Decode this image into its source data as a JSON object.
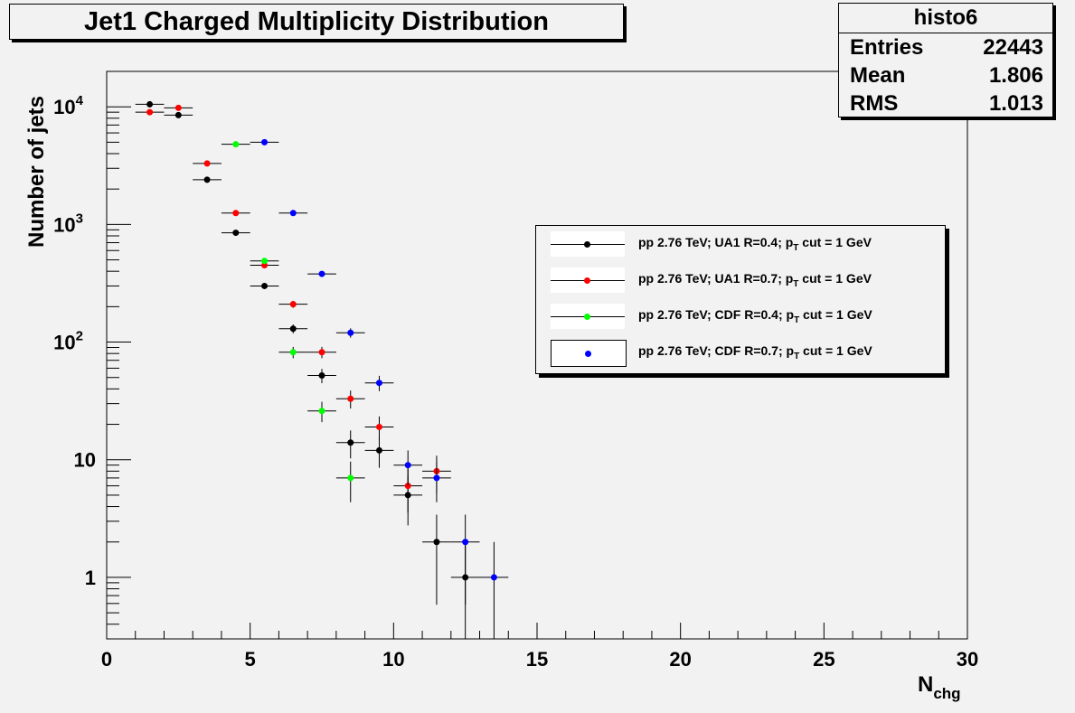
{
  "title": "Jet1 Charged Multiplicity Distribution",
  "stats": {
    "name": "histo6",
    "rows": [
      {
        "label": "Entries",
        "value": "22443"
      },
      {
        "label": "Mean",
        "value": "1.806"
      },
      {
        "label": "RMS",
        "value": "1.013"
      }
    ]
  },
  "legend": [
    {
      "pre": "pp 2.76 TeV; UA1 R=0.4; p",
      "sub": "T",
      "post": " cut = 1 GeV",
      "color": "#000000",
      "style": "line"
    },
    {
      "pre": "pp 2.76 TeV; UA1 R=0.7; p",
      "sub": "T",
      "post": " cut = 1 GeV",
      "color": "#ff0000",
      "style": "line"
    },
    {
      "pre": "pp 2.76 TeV; CDF R=0.4; p",
      "sub": "T",
      "post": " cut = 1 GeV",
      "color": "#00ff00",
      "style": "line"
    },
    {
      "pre": "pp 2.76 TeV; CDF R=0.7; p",
      "sub": "T",
      "post": " cut = 1 GeV",
      "color": "#0000ff",
      "style": "box"
    }
  ],
  "chart_data": {
    "type": "scatter",
    "title": "Jet1 Charged Multiplicity Distribution",
    "xlabel": "N",
    "xlabel_sub": "chg",
    "ylabel": "Number of jets",
    "xlim": [
      0,
      30
    ],
    "ylim": [
      0.3,
      20000
    ],
    "yscale": "log",
    "grid": false,
    "legend_position": "right",
    "x_ticks": [
      "0",
      "5",
      "10",
      "15",
      "20",
      "25",
      "30"
    ],
    "y_ticks": [
      {
        "value": 1,
        "base": "1",
        "exp": ""
      },
      {
        "value": 10,
        "base": "10",
        "exp": ""
      },
      {
        "value": 100,
        "base": "10",
        "exp": "2"
      },
      {
        "value": 1000,
        "base": "10",
        "exp": "3"
      },
      {
        "value": 10000,
        "base": "10",
        "exp": "4"
      }
    ],
    "series": [
      {
        "name": "pp 2.76 TeV; UA1 R=0.4; pT cut = 1 GeV",
        "color": "#000000",
        "x": [
          1.5,
          2.5,
          3.5,
          4.5,
          5.5,
          6.5,
          7.5,
          8.5,
          9.5,
          10.5,
          11.5,
          12.5
        ],
        "y": [
          10500,
          8500,
          2400,
          850,
          300,
          130,
          52,
          14,
          12,
          5,
          2,
          1
        ]
      },
      {
        "name": "pp 2.76 TeV; UA1 R=0.7; pT cut = 1 GeV",
        "color": "#ff0000",
        "x": [
          1.5,
          2.5,
          3.5,
          4.5,
          5.5,
          6.5,
          7.5,
          8.5,
          9.5,
          10.5,
          11.5
        ],
        "y": [
          9000,
          9800,
          3300,
          1250,
          450,
          210,
          82,
          33,
          19,
          6,
          8
        ]
      },
      {
        "name": "pp 2.76 TeV; CDF R=0.4; pT cut = 1 GeV",
        "color": "#00ff00",
        "x": [
          4.5,
          5.5,
          6.5,
          7.5,
          8.5
        ],
        "y": [
          4800,
          490,
          82,
          26,
          7
        ]
      },
      {
        "name": "pp 2.76 TeV; CDF R=0.7; pT cut = 1 GeV",
        "color": "#0000ff",
        "x": [
          5.5,
          6.5,
          7.5,
          8.5,
          9.5,
          10.5,
          11.5,
          12.5,
          13.5
        ],
        "y": [
          5000,
          1250,
          380,
          120,
          45,
          9,
          7,
          2,
          1
        ]
      }
    ]
  }
}
